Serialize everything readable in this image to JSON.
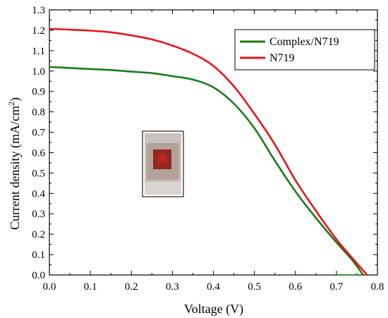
{
  "chart_data": {
    "type": "line",
    "title": "",
    "xlabel": "Voltage (V)",
    "ylabel": "Current density (mA/cm",
    "ylabel_superscript": "2",
    "ylabel_suffix": ")",
    "xlim": [
      0.0,
      0.8
    ],
    "ylim": [
      0.0,
      1.3
    ],
    "x_ticks": [
      "0.0",
      "0.1",
      "0.2",
      "0.3",
      "0.4",
      "0.5",
      "0.6",
      "0.7",
      "0.8"
    ],
    "y_ticks": [
      "0.0",
      "0.1",
      "0.2",
      "0.3",
      "0.4",
      "0.5",
      "0.6",
      "0.7",
      "0.8",
      "0.9",
      "1.0",
      "1.1",
      "1.2",
      "1.3"
    ],
    "grid": false,
    "legend_position": "top-right",
    "series": [
      {
        "name": "Complex/N719",
        "color": "#1a7a1a",
        "x": [
          0.0,
          0.05,
          0.1,
          0.15,
          0.2,
          0.25,
          0.3,
          0.35,
          0.4,
          0.45,
          0.5,
          0.55,
          0.6,
          0.65,
          0.7,
          0.74,
          0.765
        ],
        "y": [
          1.02,
          1.015,
          1.01,
          1.005,
          0.997,
          0.99,
          0.975,
          0.958,
          0.92,
          0.84,
          0.72,
          0.56,
          0.41,
          0.28,
          0.16,
          0.07,
          0.0
        ]
      },
      {
        "name": "N719",
        "color": "#e8141c",
        "x": [
          0.0,
          0.05,
          0.1,
          0.15,
          0.2,
          0.25,
          0.3,
          0.35,
          0.4,
          0.45,
          0.5,
          0.55,
          0.6,
          0.65,
          0.7,
          0.74,
          0.775
        ],
        "y": [
          1.207,
          1.203,
          1.198,
          1.19,
          1.175,
          1.155,
          1.125,
          1.085,
          1.025,
          0.925,
          0.79,
          0.64,
          0.465,
          0.315,
          0.175,
          0.08,
          0.0
        ]
      }
    ],
    "inset": "photo-of-device"
  }
}
